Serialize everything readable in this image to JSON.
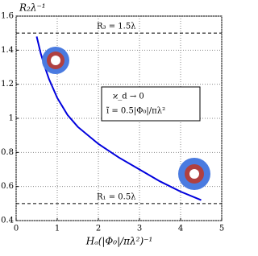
{
  "chart_data": {
    "type": "line",
    "y_label": "R₂λ⁻¹",
    "x_label": "Hₐ(|Φ₀|/πλ²)⁻¹",
    "x": [
      0.5,
      0.6,
      0.7,
      0.8,
      1.0,
      1.25,
      1.5,
      2.0,
      2.5,
      3.0,
      3.5,
      4.0,
      4.5
    ],
    "series": [
      {
        "color": "#0000dd",
        "values": [
          1.48,
          1.38,
          1.3,
          1.23,
          1.12,
          1.02,
          0.95,
          0.85,
          0.77,
          0.7,
          0.63,
          0.57,
          0.52
        ]
      }
    ],
    "hlines": [
      {
        "value": 1.5,
        "label": "R₃ = 1.5λ"
      },
      {
        "value": 0.5,
        "label": "R₁ = 0.5λ"
      }
    ],
    "annotations": [
      "ϰ_d → 0",
      "ĩ = 0.5|Φ₀|/πλ²"
    ],
    "xlim": [
      0,
      5
    ],
    "xticks": [
      0,
      1,
      2,
      3,
      4,
      5
    ],
    "ylim": [
      0.4,
      1.6
    ],
    "yticks": [
      0.4,
      0.6,
      0.8,
      1,
      1.2,
      1.4,
      1.6
    ],
    "grid": true
  }
}
